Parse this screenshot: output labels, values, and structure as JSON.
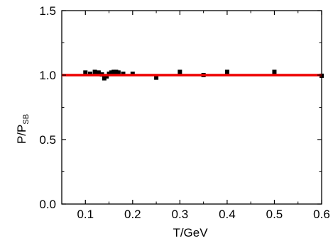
{
  "chart_data": {
    "type": "scatter",
    "xlabel": "T/GeV",
    "ylabel": "P/P",
    "ylabel_subscript": "SB",
    "xlim": [
      0.05,
      0.6
    ],
    "ylim": [
      0.0,
      1.5
    ],
    "xticks": [
      0.1,
      0.2,
      0.3,
      0.4,
      0.5,
      0.6
    ],
    "xtick_labels": [
      "0.1",
      "0.2",
      "0.3",
      "0.4",
      "0.5",
      "0.6"
    ],
    "yticks": [
      0.0,
      0.5,
      1.0,
      1.5
    ],
    "ytick_labels": [
      "0.0",
      "0.5",
      "1.0",
      "1.5"
    ],
    "grid": false,
    "series": [
      {
        "marker": "square",
        "color": "#000000",
        "points": [
          {
            "x": 0.1,
            "y": 1.02
          },
          {
            "x": 0.11,
            "y": 1.01
          },
          {
            "x": 0.12,
            "y": 1.025
          },
          {
            "x": 0.128,
            "y": 1.02
          },
          {
            "x": 0.135,
            "y": 1.005
          },
          {
            "x": 0.14,
            "y": 0.975
          },
          {
            "x": 0.145,
            "y": 0.99
          },
          {
            "x": 0.15,
            "y": 1.01
          },
          {
            "x": 0.155,
            "y": 1.02
          },
          {
            "x": 0.16,
            "y": 1.025
          },
          {
            "x": 0.165,
            "y": 1.025
          },
          {
            "x": 0.17,
            "y": 1.02
          },
          {
            "x": 0.18,
            "y": 1.01
          },
          {
            "x": 0.2,
            "y": 1.01
          },
          {
            "x": 0.25,
            "y": 0.98
          },
          {
            "x": 0.3,
            "y": 1.025
          },
          {
            "x": 0.35,
            "y": 1.0
          },
          {
            "x": 0.4,
            "y": 1.025
          },
          {
            "x": 0.5,
            "y": 1.025
          },
          {
            "x": 0.6,
            "y": 0.995
          }
        ]
      },
      {
        "type": "line",
        "color": "#ee0000",
        "points": [
          {
            "x": 0.05,
            "y": 1.0
          },
          {
            "x": 0.6,
            "y": 1.0
          }
        ]
      }
    ]
  }
}
